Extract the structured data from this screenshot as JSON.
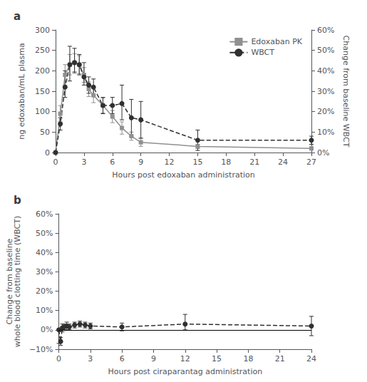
{
  "chart_data": [
    {
      "type": "line",
      "title": "a",
      "xlabel": "Hours post edoxaban administration",
      "ylabel": "ng edoxaban/mL plasma",
      "y2label": "Change from baseline WBCT",
      "x": [
        0,
        0.5,
        1,
        1.5,
        2,
        2.5,
        3,
        3.5,
        4,
        5,
        6,
        7,
        8,
        9,
        15,
        27
      ],
      "xlim": [
        0,
        27
      ],
      "xticks": [
        0,
        3,
        6,
        9,
        12,
        15,
        18,
        21,
        24,
        27
      ],
      "ylim": [
        0,
        300
      ],
      "yticks": [
        0,
        50,
        100,
        150,
        200,
        250,
        300
      ],
      "y2lim": [
        0,
        60
      ],
      "y2ticks": [
        {
          "value": 0,
          "label": "0%"
        },
        {
          "value": 10,
          "label": "10%"
        },
        {
          "value": 20,
          "label": "20%"
        },
        {
          "value": 30,
          "label": "30%"
        },
        {
          "value": 40,
          "label": "40%"
        },
        {
          "value": 50,
          "label": "50%"
        },
        {
          "value": 60,
          "label": "60%"
        }
      ],
      "grid": false,
      "legend": "upper right",
      "series": [
        {
          "name": "Edoxaban PK",
          "color": "#909090",
          "marker": "square",
          "line_style": "solid",
          "values": [
            0,
            95,
            190,
            215,
            220,
            215,
            190,
            155,
            140,
            115,
            88,
            60,
            40,
            25,
            15,
            10
          ],
          "yerr_low": [
            0,
            20,
            25,
            25,
            22,
            22,
            18,
            18,
            18,
            18,
            15,
            15,
            10,
            10,
            5,
            3
          ],
          "yerr_high": [
            0,
            20,
            25,
            25,
            22,
            22,
            18,
            18,
            18,
            18,
            15,
            15,
            10,
            10,
            5,
            3
          ]
        },
        {
          "name": "WBCT",
          "axis": "y2",
          "color": "#303030",
          "marker": "circle",
          "line_style": "dashed",
          "values": [
            0,
            14,
            32,
            43,
            44,
            43,
            37,
            33,
            32,
            23,
            23,
            24,
            17,
            16,
            6,
            6
          ],
          "yerr_low": [
            0,
            3,
            5,
            8,
            5,
            5,
            4,
            4,
            4,
            4,
            4,
            8,
            9,
            9,
            5,
            2
          ],
          "yerr_high": [
            0,
            3,
            8,
            9,
            7,
            5,
            7,
            4,
            4,
            4,
            4,
            9,
            9,
            9,
            5,
            2
          ]
        }
      ]
    },
    {
      "type": "line",
      "title": "b",
      "xlabel": "Hours post ciraparantag administration",
      "ylabel": "Change from baseline\nwhole blood clotting time (WBCT)",
      "x": [
        0,
        0.17,
        0.33,
        0.5,
        0.75,
        1.0,
        1.5,
        2.0,
        2.5,
        3.0,
        6.0,
        12.0,
        24.0
      ],
      "xlim": [
        0,
        24
      ],
      "xticks": [
        0,
        3,
        6,
        9,
        12,
        15,
        18,
        21,
        24
      ],
      "ylim": [
        -10,
        60
      ],
      "yticks": [
        {
          "value": -10,
          "label": "−10%"
        },
        {
          "value": 0,
          "label": "0%"
        },
        {
          "value": 10,
          "label": "10%"
        },
        {
          "value": 20,
          "label": "20%"
        },
        {
          "value": 30,
          "label": "30%"
        },
        {
          "value": 40,
          "label": "40%"
        },
        {
          "value": 50,
          "label": "50%"
        },
        {
          "value": 60,
          "label": "60%"
        }
      ],
      "grid": false,
      "hlines": [
        0
      ],
      "series": [
        {
          "color": "#303030",
          "marker": "circle",
          "line_style": "dashed",
          "values": [
            0,
            -6,
            1,
            1.5,
            2,
            1.5,
            2.5,
            3.0,
            2.5,
            2.0,
            1.5,
            3.0,
            2.0
          ],
          "yerr_low": [
            7,
            2,
            2,
            1.5,
            2,
            1.5,
            1.5,
            1.5,
            1.5,
            1.5,
            2.0,
            3.0,
            5.0
          ],
          "yerr_high": [
            0,
            2,
            2,
            1.5,
            2,
            1.5,
            1.5,
            1.5,
            1.5,
            1.5,
            2.0,
            5.0,
            5.0
          ]
        }
      ]
    }
  ]
}
